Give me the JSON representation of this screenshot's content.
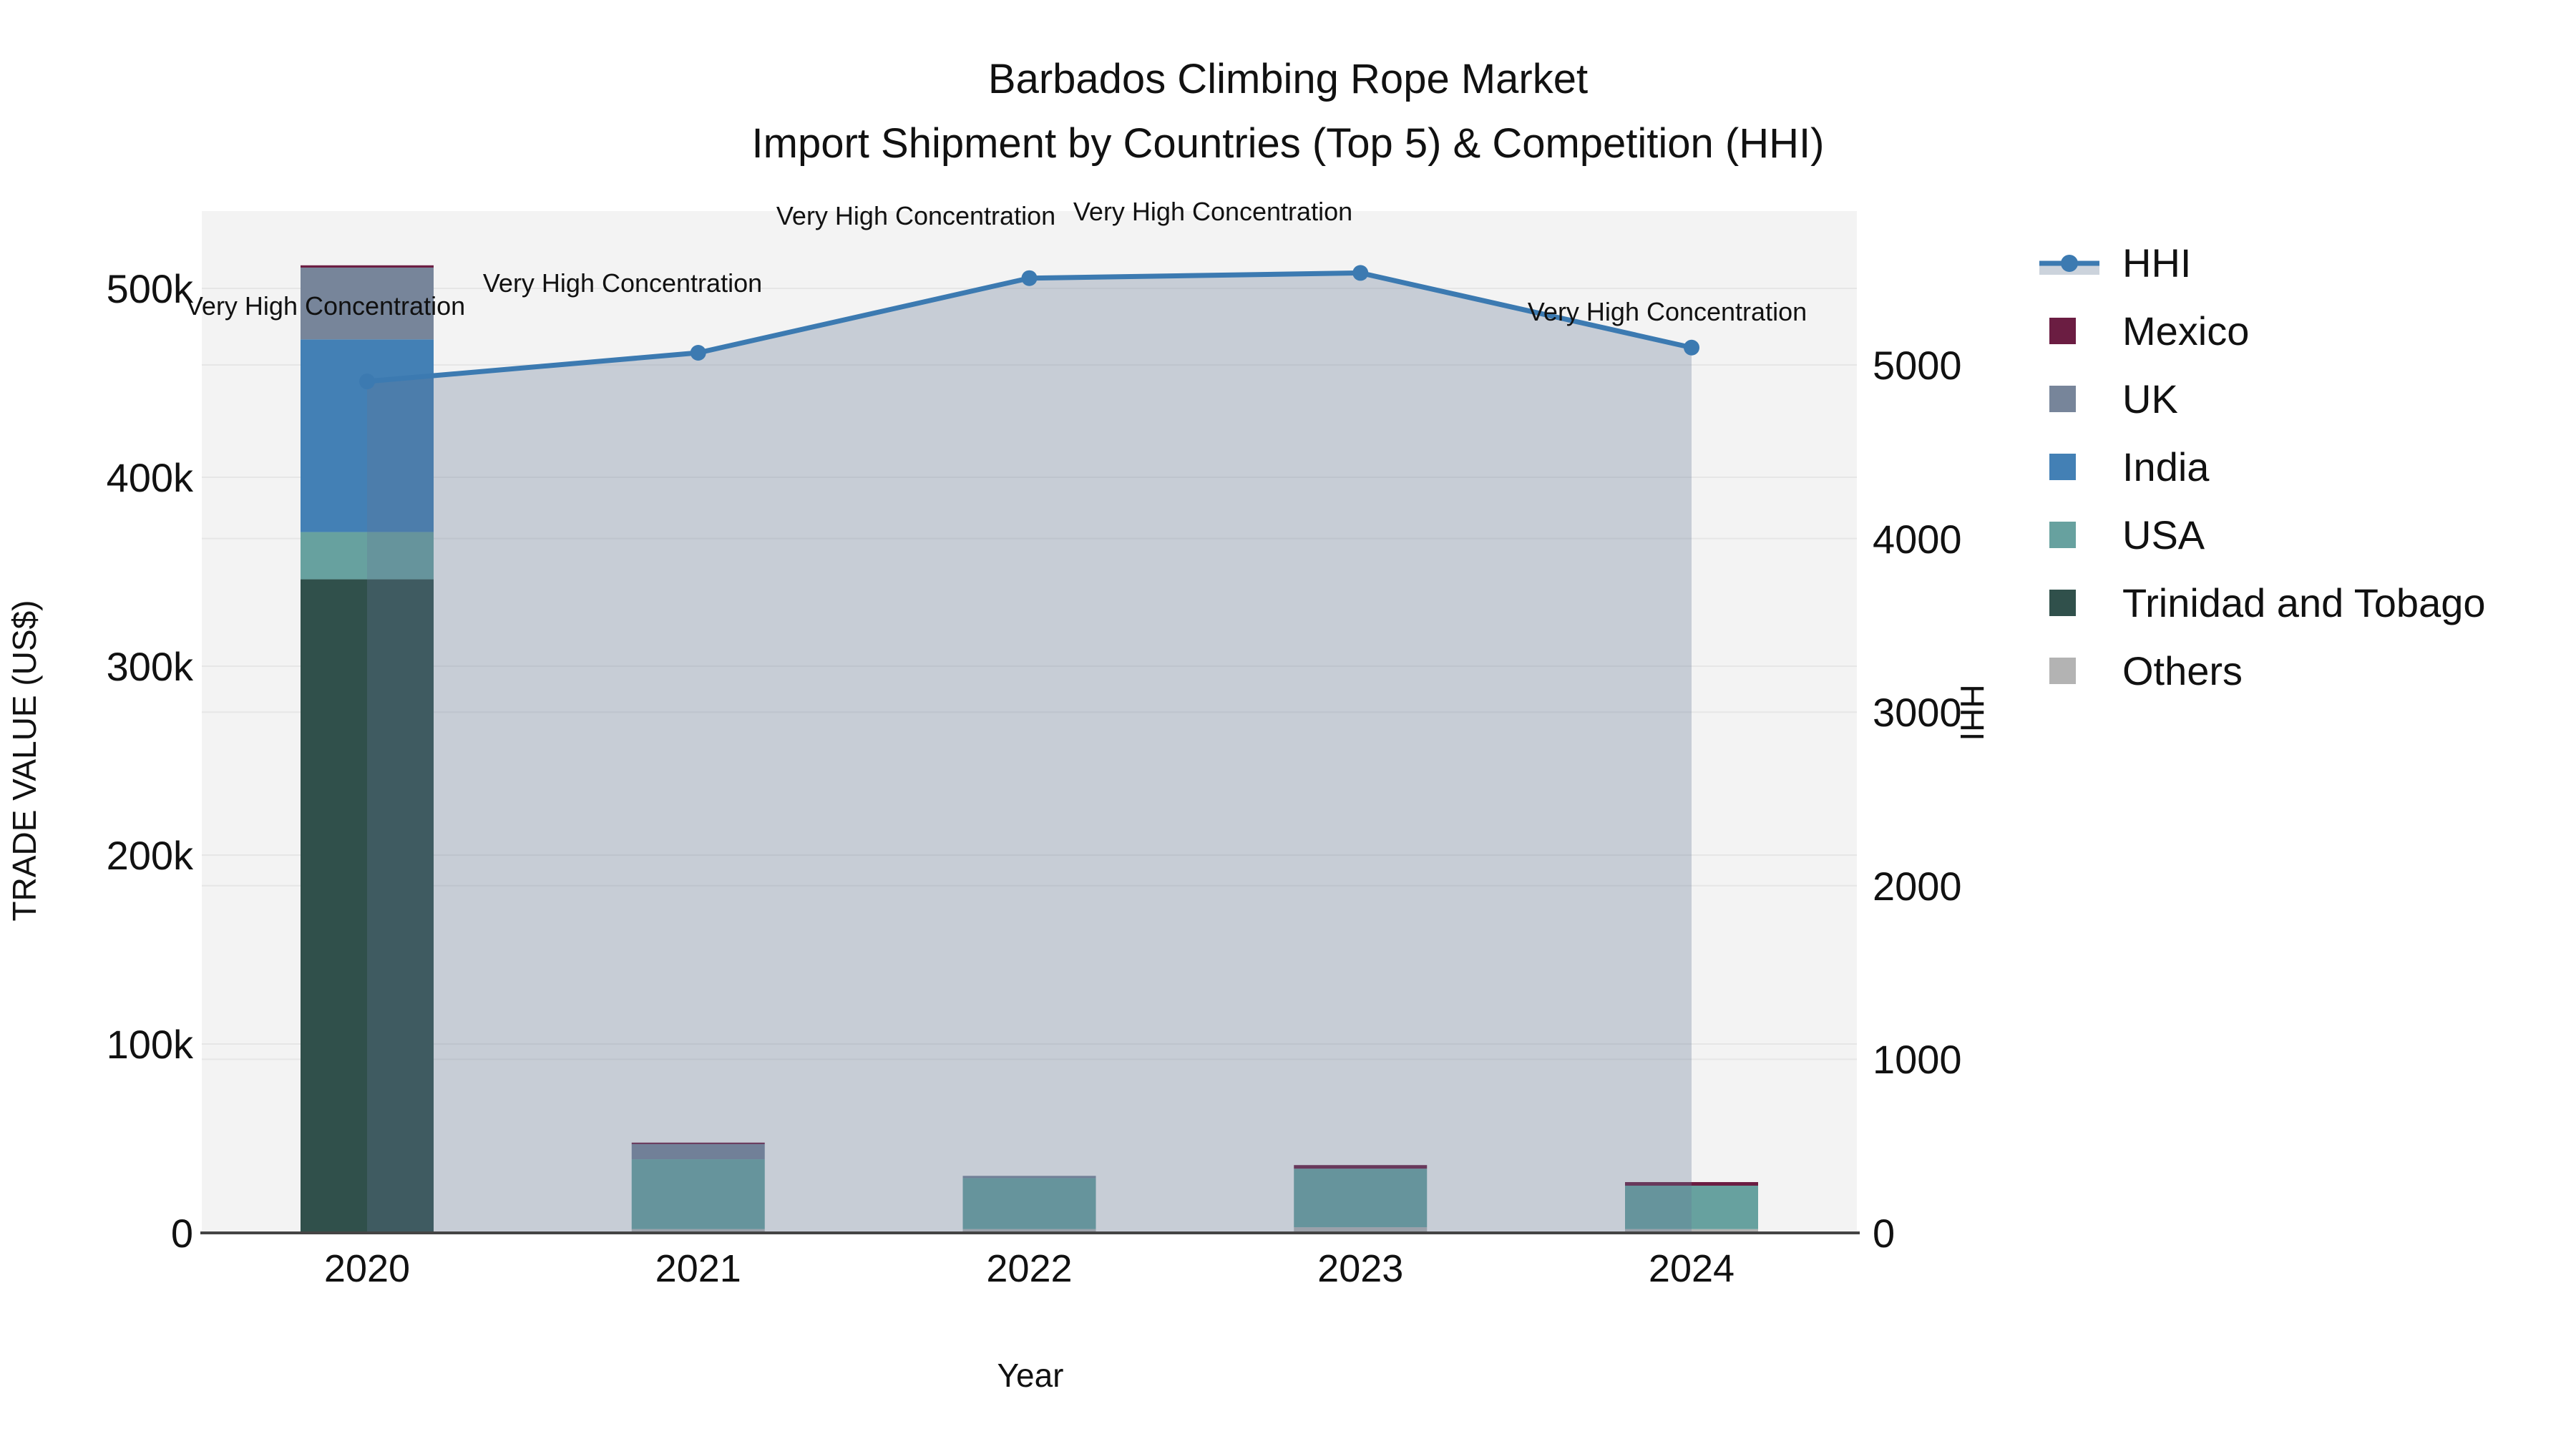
{
  "title": {
    "line1": "Barbados Climbing Rope Market",
    "line2": "Import Shipment by Countries (Top 5) & Competition (HHI)"
  },
  "axes": {
    "x": {
      "title": "Year",
      "ticks": [
        "2020",
        "2021",
        "2022",
        "2023",
        "2024"
      ]
    },
    "y_left": {
      "title": "TRADE VALUE (US$)",
      "ticks": [
        "0",
        "100k",
        "200k",
        "300k",
        "400k",
        "500k"
      ]
    },
    "y_right": {
      "title": "HHI",
      "ticks": [
        "0",
        "1000",
        "2000",
        "3000",
        "4000",
        "5000"
      ]
    }
  },
  "legend": [
    {
      "label": "HHI",
      "type": "line",
      "color": "#3c7ab1",
      "fill": "#ccd3dc"
    },
    {
      "label": "Mexico",
      "type": "square",
      "color": "#6b1d42"
    },
    {
      "label": "UK",
      "type": "square",
      "color": "#77859a"
    },
    {
      "label": "India",
      "type": "square",
      "color": "#4380b5"
    },
    {
      "label": "USA",
      "type": "square",
      "color": "#67a19f"
    },
    {
      "label": "Trinidad and Tobago",
      "type": "square",
      "color": "#30504b"
    },
    {
      "label": "Others",
      "type": "square",
      "color": "#b3b3b3"
    }
  ],
  "chart_data": {
    "type": "bar+line",
    "categories": [
      "2020",
      "2021",
      "2022",
      "2023",
      "2024"
    ],
    "values_unit": "US$ thousands",
    "stack_order_bottom_to_top": [
      "Others",
      "Trinidad and Tobago",
      "USA",
      "India",
      "UK",
      "Mexico"
    ],
    "series": [
      {
        "name": "Others",
        "color": "#b3b3b3",
        "values": [
          0,
          2,
          2,
          3,
          2
        ]
      },
      {
        "name": "Trinidad and Tobago",
        "color": "#30504b",
        "values": [
          346,
          0,
          0,
          0,
          0
        ]
      },
      {
        "name": "USA",
        "color": "#67a19f",
        "values": [
          25,
          37,
          27,
          31,
          23
        ]
      },
      {
        "name": "India",
        "color": "#4380b5",
        "values": [
          102,
          0,
          0,
          0,
          0
        ]
      },
      {
        "name": "UK",
        "color": "#77859a",
        "values": [
          38,
          8,
          1.2,
          0,
          0
        ]
      },
      {
        "name": "Mexico",
        "color": "#6b1d42",
        "values": [
          1.2,
          0.8,
          0,
          1.9,
          1.9
        ]
      }
    ],
    "line": {
      "name": "HHI",
      "axis": "right",
      "color": "#3c7ab1",
      "area_fill": "rgba(100,120,150,0.30)",
      "values": [
        4905,
        5070,
        5500,
        5530,
        5100
      ]
    },
    "annotations": [
      {
        "x": "2020",
        "text": "Very High Concentration"
      },
      {
        "x": "2021",
        "text": "Very High Concentration"
      },
      {
        "x": "2022",
        "text": "Very High Concentration"
      },
      {
        "x": "2023",
        "text": "Very High Concentration"
      },
      {
        "x": "2024",
        "text": "Very High Concentration"
      }
    ],
    "y_left_range": [
      0,
      541000
    ],
    "y_right_range": [
      0,
      5890
    ],
    "grid": true,
    "legend_position": "right",
    "xlabel": "Year",
    "ylabel_left": "TRADE VALUE (US$)",
    "ylabel_right": "HHI",
    "plot_background": "#f3f3f3",
    "gridline_color": "#e6e6e6",
    "axisline_color": "#444444"
  }
}
